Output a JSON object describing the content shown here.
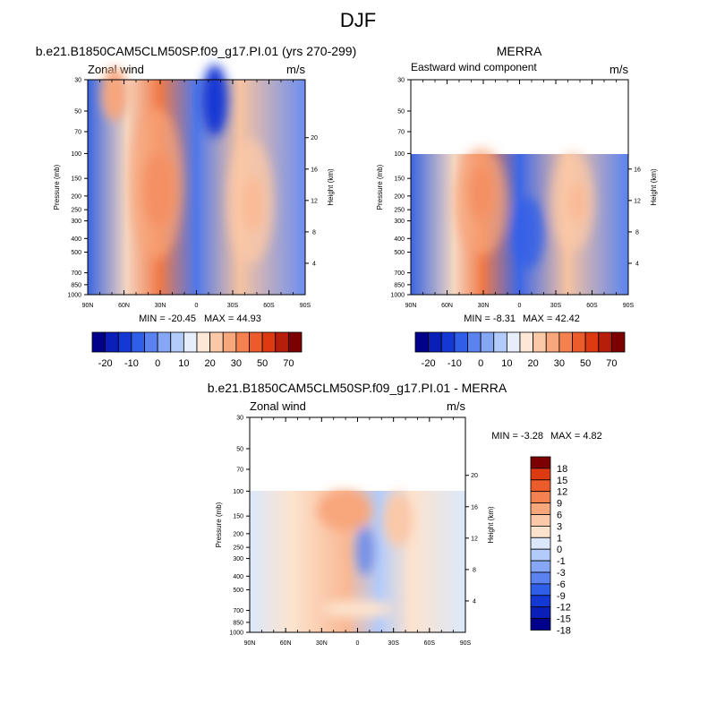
{
  "page": {
    "title": "DJF"
  },
  "colors": {
    "model_obs_scale": [
      "#00008b",
      "#0a1fb8",
      "#1438d4",
      "#2f5fe8",
      "#5a83f0",
      "#86a7f5",
      "#b3cbfa",
      "#e6eefc",
      "#fde8d8",
      "#fbc8a8",
      "#f8a67c",
      "#f38250",
      "#ec5b2b",
      "#dd3a12",
      "#b61d0b",
      "#7d0000"
    ],
    "diff_scale": [
      "#00008b",
      "#0a1fb8",
      "#1438d4",
      "#2f5fe8",
      "#5a83f0",
      "#86a7f5",
      "#b3cbfa",
      "#dbe8fb",
      "#fde3cd",
      "#fbc8a8",
      "#f8a67c",
      "#f38250",
      "#ec5b2b",
      "#dd3a12",
      "#7d0000"
    ]
  },
  "chart_data": [
    {
      "type": "heatmap",
      "title": "b.e21.B1850CAM5CLM50SP.f09_g17.PI.01 (yrs 270-299)",
      "subtitle_left": "Zonal wind",
      "subtitle_right": "m/s",
      "xlabel": "",
      "ylabel": "Pressure (mb)",
      "ylabel_right": "Height (km)",
      "x_ticks": [
        "90N",
        "60N",
        "30N",
        "0",
        "30S",
        "60S",
        "90S"
      ],
      "y_ticks": [
        30,
        50,
        70,
        100,
        150,
        200,
        250,
        300,
        400,
        500,
        700,
        850,
        1000
      ],
      "height_ticks": [
        20,
        16,
        12,
        8,
        4
      ],
      "ylim": [
        1000,
        30
      ],
      "y_scale": "log",
      "min_text": "MIN = -20.45",
      "max_text": "MAX =  44.93",
      "min": -20.45,
      "max": 44.93,
      "features": [
        {
          "lat": 60,
          "p": 32,
          "value": 15
        },
        {
          "lat": 32,
          "p": 200,
          "value": 40
        },
        {
          "lat": 12,
          "p": 40,
          "value": -20
        },
        {
          "lat": -48,
          "p": 220,
          "value": 40
        }
      ],
      "colorbar": {
        "levels": [
          -25,
          -20,
          -15,
          -10,
          -5,
          0,
          5,
          10,
          15,
          20,
          25,
          30,
          40,
          50,
          60,
          70
        ],
        "labels": [
          "-20",
          "-10",
          "0",
          "10",
          "20",
          "30",
          "50",
          "70"
        ]
      }
    },
    {
      "type": "heatmap",
      "title": "MERRA",
      "subtitle_left": "Eastward wind component",
      "subtitle_right": "m/s",
      "xlabel": "",
      "ylabel": "Pressure (mb)",
      "ylabel_right": "Height (km)",
      "x_ticks": [
        "90N",
        "60N",
        "30N",
        "0",
        "30S",
        "60S",
        "90S"
      ],
      "y_ticks": [
        30,
        50,
        70,
        100,
        150,
        200,
        250,
        300,
        400,
        500,
        700,
        850,
        1000
      ],
      "height_ticks": [
        16,
        12,
        8,
        4
      ],
      "ylim": [
        1000,
        30
      ],
      "y_scale": "log",
      "data_top_pressure": 100,
      "min_text": "MIN =  -8.31",
      "max_text": "MAX =  42.42",
      "min": -8.31,
      "max": 42.42,
      "features": [
        {
          "lat": 30,
          "p": 200,
          "value": 42
        },
        {
          "lat": -45,
          "p": 220,
          "value": 40
        },
        {
          "lat": 10,
          "p": 400,
          "value": -8
        }
      ],
      "colorbar": {
        "levels": [
          -25,
          -20,
          -15,
          -10,
          -5,
          0,
          5,
          10,
          15,
          20,
          25,
          30,
          40,
          50,
          60,
          70
        ],
        "labels": [
          "-20",
          "-10",
          "0",
          "10",
          "20",
          "30",
          "50",
          "70"
        ]
      }
    },
    {
      "type": "heatmap",
      "title": "b.e21.B1850CAM5CLM50SP.f09_g17.PI.01 - MERRA",
      "subtitle_left": "Zonal wind",
      "subtitle_right": "m/s",
      "xlabel": "",
      "ylabel": "Pressure (mb)",
      "ylabel_right": "Height (km)",
      "x_ticks": [
        "90N",
        "60N",
        "30N",
        "0",
        "30S",
        "60S",
        "90S"
      ],
      "y_ticks": [
        30,
        50,
        70,
        100,
        150,
        200,
        250,
        300,
        400,
        500,
        700,
        850,
        1000
      ],
      "height_ticks": [
        20,
        16,
        12,
        8,
        4
      ],
      "ylim": [
        1000,
        30
      ],
      "y_scale": "log",
      "data_top_pressure": 100,
      "min_text": "MIN =  -3.28",
      "max_text": "MAX =   4.82",
      "min": -3.28,
      "max": 4.82,
      "features": [
        {
          "lat": 18,
          "p": 110,
          "value": 4.5
        },
        {
          "lat": -5,
          "p": 280,
          "value": -3
        },
        {
          "lat": -35,
          "p": 150,
          "value": 3
        }
      ],
      "colorbar": {
        "levels": [
          -21,
          -18,
          -15,
          -12,
          -9,
          -6,
          -3,
          -1,
          0,
          1,
          3,
          6,
          9,
          12,
          15,
          18,
          21
        ],
        "labels": [
          "18",
          "15",
          "12",
          "9",
          "6",
          "3",
          "1",
          "0",
          "-1",
          "-3",
          "-6",
          "-9",
          "-12",
          "-15",
          "-18"
        ]
      }
    }
  ]
}
